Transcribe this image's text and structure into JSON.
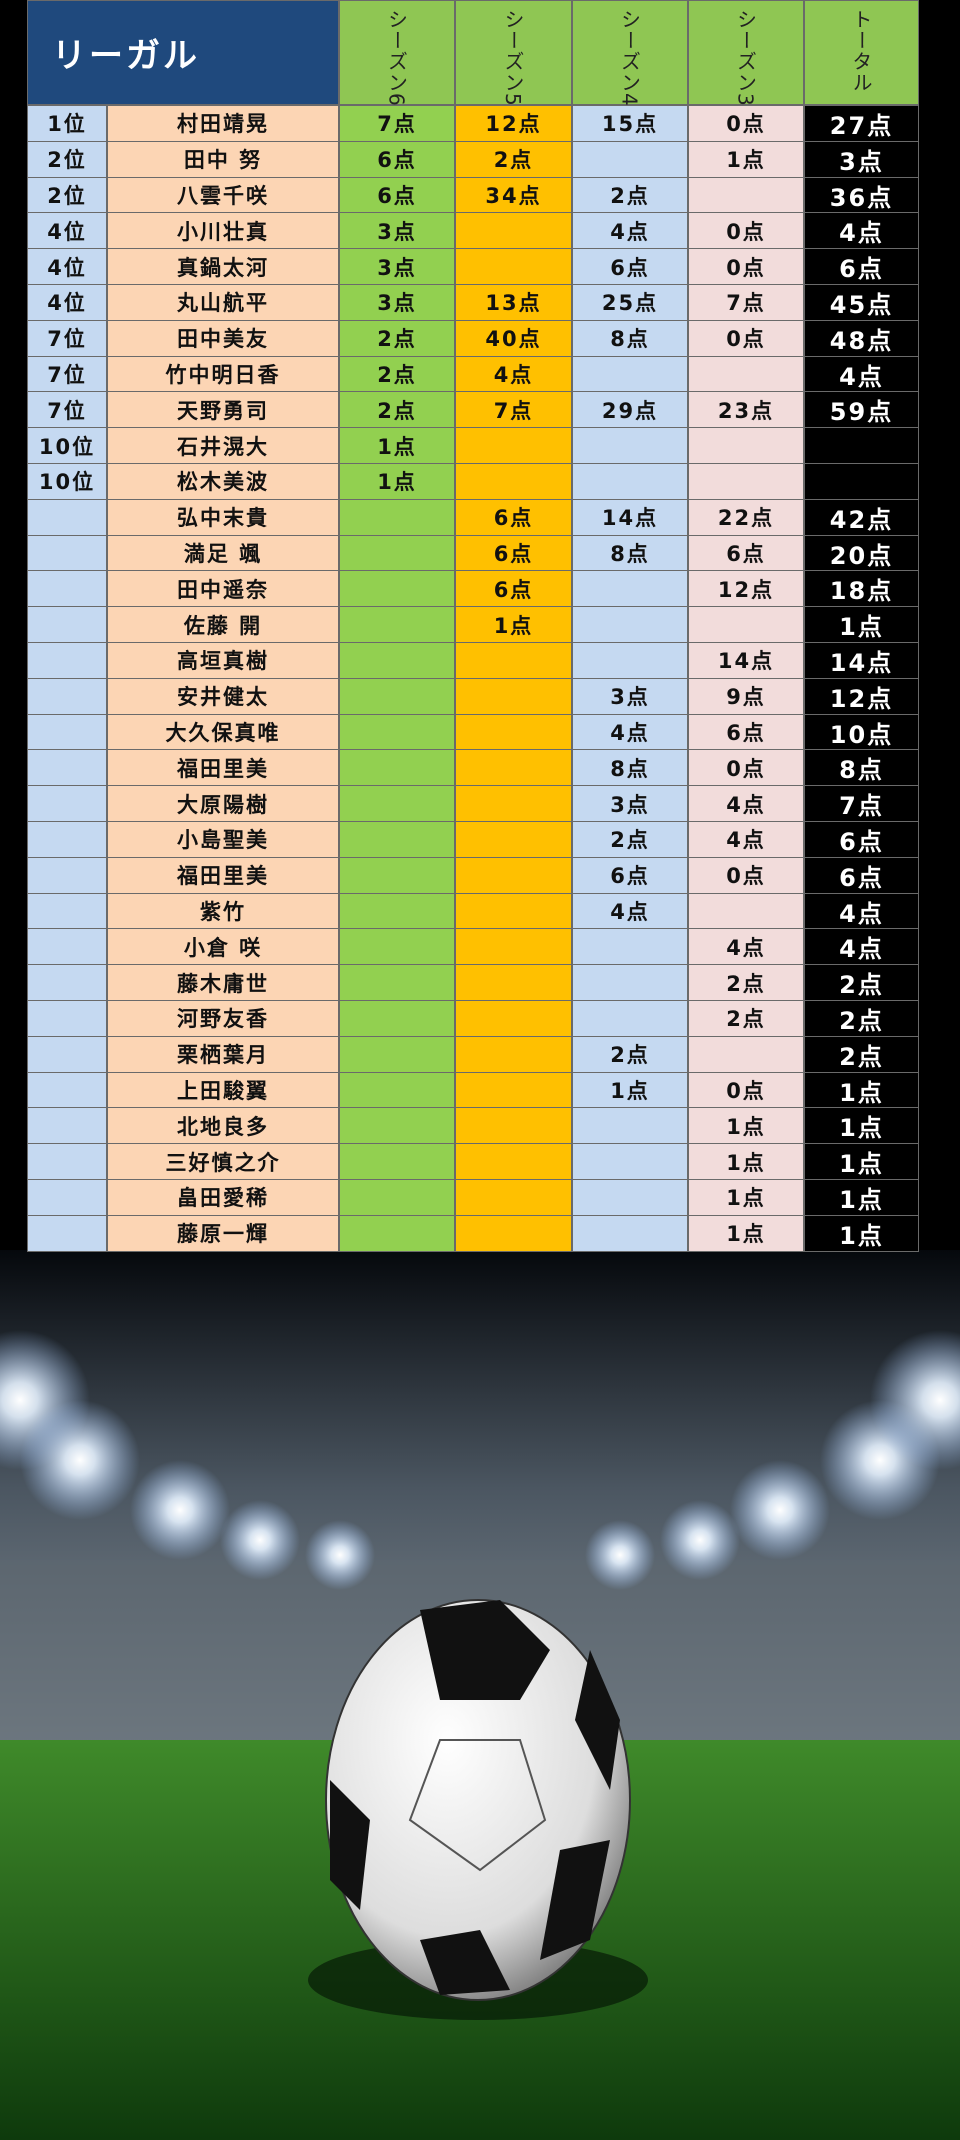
{
  "header": {
    "title": "リーガル",
    "columns": [
      "シーズン6",
      "シーズン5",
      "シーズン4",
      "シーズン3",
      "トータル"
    ]
  },
  "table": {
    "rows": [
      [
        "1位",
        "村田靖晃",
        "7点",
        "12点",
        "15点",
        "0点",
        "27点"
      ],
      [
        "2位",
        "田中 努",
        "6点",
        "2点",
        null,
        "1点",
        "3点"
      ],
      [
        "2位",
        "八雲千咲",
        "6点",
        "34点",
        "2点",
        null,
        "36点"
      ],
      [
        "4位",
        "小川壮真",
        "3点",
        null,
        "4点",
        "0点",
        "4点"
      ],
      [
        "4位",
        "真鍋太河",
        "3点",
        null,
        "6点",
        "0点",
        "6点"
      ],
      [
        "4位",
        "丸山航平",
        "3点",
        "13点",
        "25点",
        "7点",
        "45点"
      ],
      [
        "7位",
        "田中美友",
        "2点",
        "40点",
        "8点",
        "0点",
        "48点"
      ],
      [
        "7位",
        "竹中明日香",
        "2点",
        "4点",
        null,
        null,
        "4点"
      ],
      [
        "7位",
        "天野勇司",
        "2点",
        "7点",
        "29点",
        "23点",
        "59点"
      ],
      [
        "10位",
        "石井滉大",
        "1点",
        null,
        null,
        null,
        null
      ],
      [
        "10位",
        "松木美波",
        "1点",
        null,
        null,
        null,
        null
      ],
      [
        null,
        "弘中末貴",
        null,
        "6点",
        "14点",
        "22点",
        "42点"
      ],
      [
        null,
        "満足 颯",
        null,
        "6点",
        "8点",
        "6点",
        "20点"
      ],
      [
        null,
        "田中遥奈",
        null,
        "6点",
        null,
        "12点",
        "18点"
      ],
      [
        null,
        "佐藤 開",
        null,
        "1点",
        null,
        null,
        "1点"
      ],
      [
        null,
        "高垣真樹",
        null,
        null,
        null,
        "14点",
        "14点"
      ],
      [
        null,
        "安井健太",
        null,
        null,
        "3点",
        "9点",
        "12点"
      ],
      [
        null,
        "大久保真唯",
        null,
        null,
        "4点",
        "6点",
        "10点"
      ],
      [
        null,
        "福田里美",
        null,
        null,
        "8点",
        "0点",
        "8点"
      ],
      [
        null,
        "大原陽樹",
        null,
        null,
        "3点",
        "4点",
        "7点"
      ],
      [
        null,
        "小島聖美",
        null,
        null,
        "2点",
        "4点",
        "6点"
      ],
      [
        null,
        "福田里美",
        null,
        null,
        "6点",
        "0点",
        "6点"
      ],
      [
        null,
        "紫竹",
        null,
        null,
        "4点",
        null,
        "4点"
      ],
      [
        null,
        "小倉 咲",
        null,
        null,
        null,
        "4点",
        "4点"
      ],
      [
        null,
        "藤木庸世",
        null,
        null,
        null,
        "2点",
        "2点"
      ],
      [
        null,
        "河野友香",
        null,
        null,
        null,
        "2点",
        "2点"
      ],
      [
        null,
        "栗栖葉月",
        null,
        null,
        "2点",
        null,
        "2点"
      ],
      [
        null,
        "上田駿翼",
        null,
        null,
        "1点",
        "0点",
        "1点"
      ],
      [
        null,
        "北地良多",
        null,
        null,
        null,
        "1点",
        "1点"
      ],
      [
        null,
        "三好慎之介",
        null,
        null,
        null,
        "1点",
        "1点"
      ],
      [
        null,
        "畠田愛稀",
        null,
        null,
        null,
        "1点",
        "1点"
      ],
      [
        null,
        "藤原一輝",
        null,
        null,
        null,
        "1点",
        "1点"
      ]
    ]
  }
}
